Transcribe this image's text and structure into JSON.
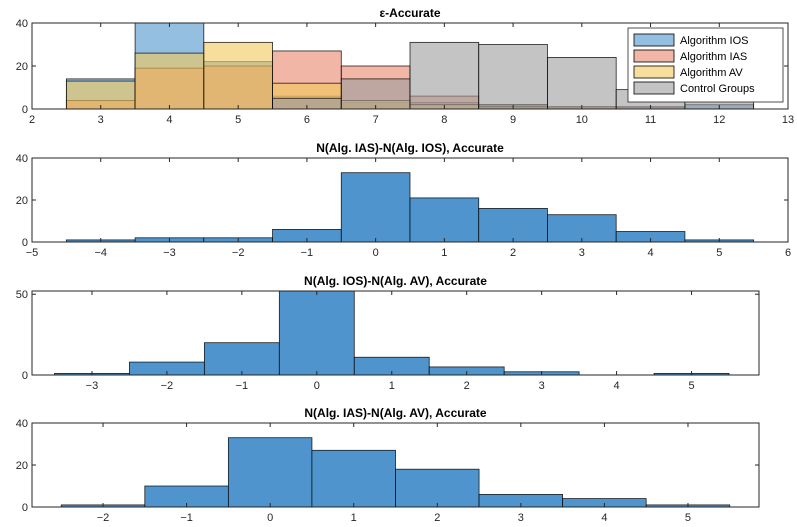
{
  "chart_data": [
    {
      "type": "bar",
      "subtype": "histogram-overlay",
      "title": "ε-Accurate",
      "xlabel": "",
      "ylabel": "",
      "xlim": [
        2,
        13
      ],
      "ylim": [
        0,
        40
      ],
      "xticks": [
        2,
        3,
        4,
        5,
        6,
        7,
        8,
        9,
        10,
        11,
        12,
        13
      ],
      "yticks": [
        0,
        20,
        40
      ],
      "grid": false,
      "legend": "top-right",
      "bin_width": 1,
      "series": [
        {
          "name": "Algorithm IOS",
          "color": "#4f94cd",
          "bin_centers": [
            3,
            4,
            5,
            6,
            7,
            8,
            9,
            10,
            11,
            12
          ],
          "values": [
            14,
            46,
            22,
            6,
            3,
            3,
            2,
            1,
            1,
            2
          ]
        },
        {
          "name": "Algorithm IAS",
          "color": "#e8866b",
          "bin_centers": [
            3,
            4,
            5,
            6,
            7,
            8,
            9,
            10,
            11,
            12
          ],
          "values": [
            4,
            19,
            20,
            27,
            20,
            6,
            2,
            1,
            1,
            0
          ]
        },
        {
          "name": "Algorithm AV",
          "color": "#f3c85a",
          "bin_centers": [
            3,
            4,
            5,
            6,
            7,
            8,
            9,
            10,
            11,
            12
          ],
          "values": [
            13,
            26,
            31,
            12,
            4,
            2,
            1,
            1,
            0,
            0
          ]
        },
        {
          "name": "Control Groups",
          "color": "#9c9c9c",
          "bin_centers": [
            3,
            4,
            5,
            6,
            7,
            8,
            9,
            10,
            11,
            12
          ],
          "values": [
            0,
            0,
            0,
            5,
            14,
            31,
            30,
            24,
            9,
            6
          ]
        }
      ]
    },
    {
      "type": "bar",
      "subtype": "histogram",
      "title": "N(Alg. IAS)-N(Alg. IOS), Accurate",
      "xlabel": "",
      "ylabel": "",
      "xlim": [
        -5,
        6
      ],
      "ylim": [
        0,
        40
      ],
      "xticks": [
        -5,
        -4,
        -3,
        -2,
        -1,
        0,
        1,
        2,
        3,
        4,
        5,
        6
      ],
      "yticks": [
        0,
        20,
        40
      ],
      "grid": false,
      "bin_width": 1,
      "series": [
        {
          "color": "#4f94cd",
          "bin_centers": [
            -4,
            -3,
            -2,
            -1,
            0,
            1,
            2,
            3,
            4,
            5
          ],
          "values": [
            1,
            2,
            2,
            6,
            33,
            21,
            16,
            13,
            5,
            1
          ]
        }
      ]
    },
    {
      "type": "bar",
      "subtype": "histogram",
      "title": "N(Alg. IOS)-N(Alg. AV), Accurate",
      "xlabel": "",
      "ylabel": "",
      "xlim": [
        -3.8,
        5.9
      ],
      "ylim": [
        0,
        52
      ],
      "xticks": [
        -3,
        -2,
        -1,
        0,
        1,
        2,
        3,
        4,
        5
      ],
      "yticks": [
        0,
        50
      ],
      "grid": false,
      "bin_width": 1,
      "series": [
        {
          "color": "#4f94cd",
          "bin_centers": [
            -3,
            -2,
            -1,
            0,
            1,
            2,
            3,
            4,
            5
          ],
          "values": [
            1,
            8,
            20,
            56,
            11,
            5,
            2,
            0,
            1
          ]
        }
      ]
    },
    {
      "type": "bar",
      "subtype": "histogram",
      "title": "N(Alg. IAS)-N(Alg. AV), Accurate",
      "xlabel": "",
      "ylabel": "",
      "xlim": [
        -2.85,
        5.85
      ],
      "ylim": [
        0,
        40
      ],
      "xticks": [
        -2,
        -1,
        0,
        1,
        2,
        3,
        4,
        5
      ],
      "yticks": [
        0,
        20,
        40
      ],
      "grid": false,
      "bin_width": 1,
      "series": [
        {
          "color": "#4f94cd",
          "bin_centers": [
            -2,
            -1,
            0,
            1,
            2,
            3,
            4,
            5
          ],
          "values": [
            1,
            10,
            33,
            27,
            18,
            6,
            4,
            1
          ]
        }
      ]
    }
  ]
}
